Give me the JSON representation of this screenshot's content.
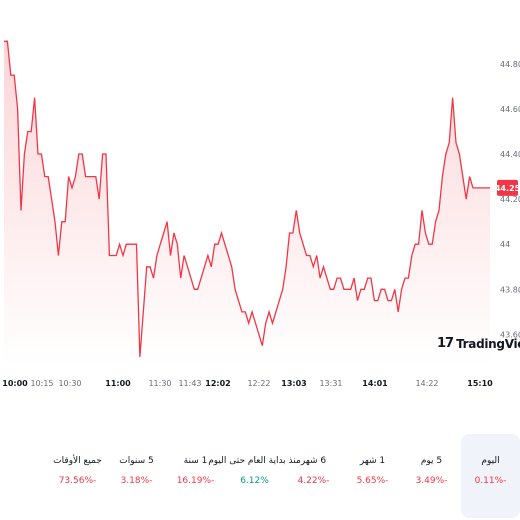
{
  "colors": {
    "line": "#f23645",
    "fill_top": "#fbd5d8",
    "fill_bottom": "#ffffff",
    "negative": "#f23645",
    "positive": "#089981"
  },
  "logo": {
    "mark": "17",
    "text": "TradingView"
  },
  "chart_data": {
    "type": "area",
    "x_tick_labels": [
      {
        "label": "10:00",
        "bold": true
      },
      {
        "label": "10:15",
        "bold": false
      },
      {
        "label": "10:30",
        "bold": false
      },
      {
        "label": "11:00",
        "bold": true
      },
      {
        "label": "11:30",
        "bold": false
      },
      {
        "label": "11:43",
        "bold": false
      },
      {
        "label": "12:02",
        "bold": true
      },
      {
        "label": "12:22",
        "bold": false
      },
      {
        "label": "13:03",
        "bold": true
      },
      {
        "label": "13:31",
        "bold": false
      },
      {
        "label": "14:01",
        "bold": true
      },
      {
        "label": "14:22",
        "bold": false
      },
      {
        "label": "15:10",
        "bold": true
      }
    ],
    "y_ticks": [
      "43.60",
      "43.80",
      "44",
      "44.20",
      "44.40",
      "44.60",
      "44.80"
    ],
    "ylim": [
      43.46,
      44.95
    ],
    "last_price": "44.25",
    "values": [
      44.9,
      44.9,
      44.75,
      44.75,
      44.6,
      44.15,
      44.4,
      44.5,
      44.5,
      44.65,
      44.4,
      44.4,
      44.3,
      44.3,
      44.2,
      44.1,
      43.95,
      44.1,
      44.1,
      44.3,
      44.25,
      44.3,
      44.4,
      44.4,
      44.3,
      44.3,
      44.3,
      44.3,
      44.2,
      44.4,
      44.4,
      43.95,
      43.95,
      43.95,
      44.0,
      43.95,
      44.0,
      44.0,
      44.0,
      44.0,
      43.5,
      43.7,
      43.9,
      43.9,
      43.85,
      43.95,
      44.0,
      44.05,
      44.1,
      43.95,
      44.05,
      44.0,
      43.85,
      43.95,
      43.9,
      43.85,
      43.8,
      43.8,
      43.85,
      43.9,
      43.95,
      43.9,
      44.0,
      44.0,
      44.05,
      44.0,
      43.95,
      43.9,
      43.8,
      43.75,
      43.7,
      43.7,
      43.65,
      43.7,
      43.65,
      43.6,
      43.55,
      43.65,
      43.7,
      43.65,
      43.7,
      43.75,
      43.8,
      43.9,
      44.05,
      44.05,
      44.15,
      44.05,
      44.0,
      43.95,
      43.95,
      43.9,
      43.95,
      43.85,
      43.9,
      43.85,
      43.8,
      43.8,
      43.85,
      43.85,
      43.8,
      43.8,
      43.8,
      43.85,
      43.75,
      43.8,
      43.8,
      43.85,
      43.85,
      43.75,
      43.75,
      43.8,
      43.8,
      43.75,
      43.75,
      43.8,
      43.7,
      43.8,
      43.85,
      43.85,
      43.95,
      44.0,
      44.0,
      44.15,
      44.05,
      44.0,
      44.0,
      44.1,
      44.15,
      44.3,
      44.4,
      44.45,
      44.65,
      44.45,
      44.4,
      44.3,
      44.2,
      44.3,
      44.25,
      44.25,
      44.25,
      44.25,
      44.25,
      44.25
    ]
  },
  "ranges": [
    {
      "label": "اليوم",
      "value": "0.11%-",
      "negative": true,
      "active": true
    },
    {
      "label": "5 يوم",
      "value": "3.49%-",
      "negative": true,
      "active": false
    },
    {
      "label": "1 شهر",
      "value": "5.65%-",
      "negative": true,
      "active": false
    },
    {
      "label": "6 شهر",
      "value": "4.22%-",
      "negative": true,
      "active": false
    },
    {
      "label": "منذ بداية العام حتى اليوم",
      "value": "6.12%",
      "negative": false,
      "active": false
    },
    {
      "label": "1 سنة",
      "value": "16.19%-",
      "negative": true,
      "active": false
    },
    {
      "label": "5 سنوات",
      "value": "3.18%-",
      "negative": true,
      "active": false
    },
    {
      "label": "جميع الأوقات",
      "value": "73.56%-",
      "negative": true,
      "active": false
    }
  ]
}
